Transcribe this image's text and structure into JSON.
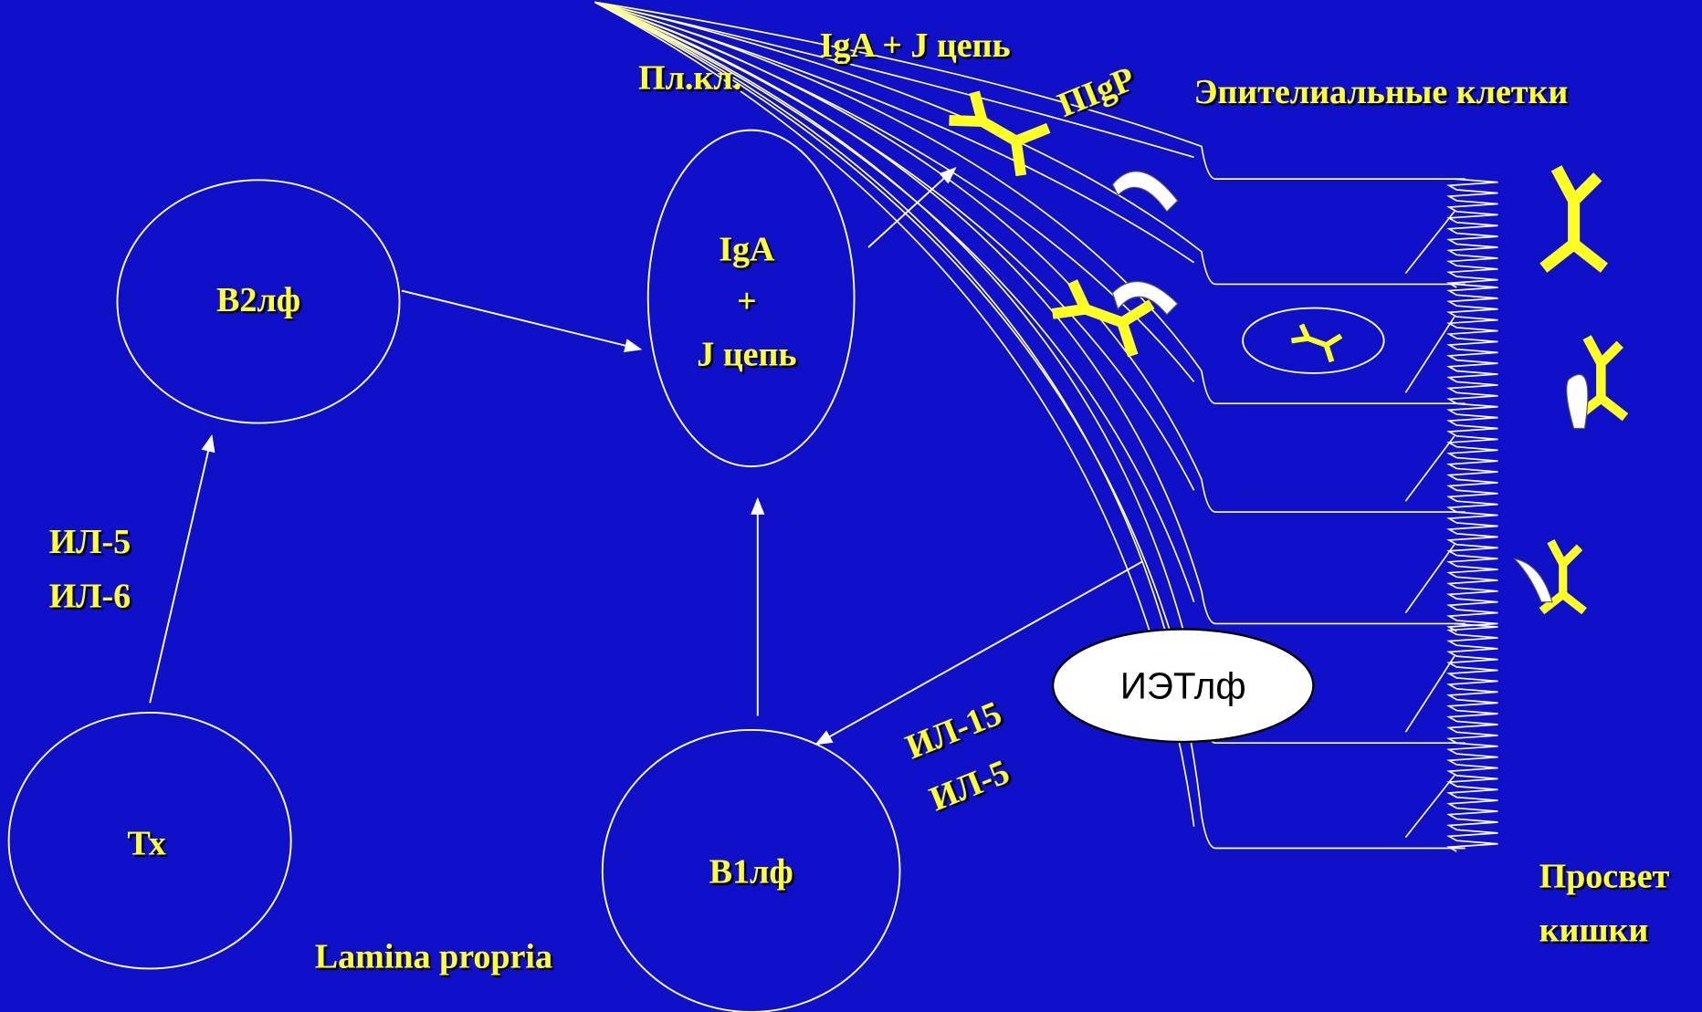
{
  "nodes": [
    {
      "lines": [
        "В2лф"
      ]
    },
    {
      "lines": [
        "IgA",
        "+",
        "J цепь"
      ]
    },
    {
      "lines": [
        "Тх"
      ]
    },
    {
      "lines": [
        "В1лф"
      ]
    },
    {
      "lines": [
        "ИЭТлф"
      ]
    }
  ],
  "labels": [
    "Пл.кл.",
    "IgA + J цепь",
    "ПIgР",
    "Эпителиальные клетки",
    "Lamina propria"
  ],
  "cytokines": [
    [
      "ИЛ-5",
      "ИЛ-6"
    ],
    [
      "ИЛ-15",
      "ИЛ-5"
    ]
  ],
  "lumen": [
    "Просвет",
    "кишки"
  ]
}
